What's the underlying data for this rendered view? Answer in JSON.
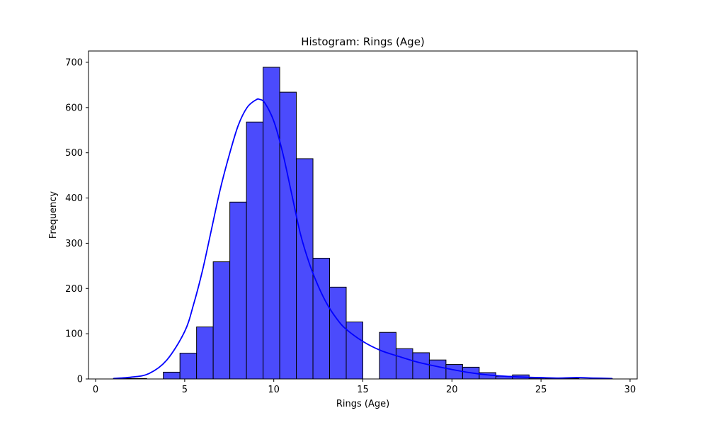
{
  "chart_data": {
    "type": "bar",
    "title": "Histogram: Rings (Age)",
    "xlabel": "Rings (Age)",
    "ylabel": "Frequency",
    "xlim": [
      -0.4,
      30.4
    ],
    "ylim": [
      0,
      725
    ],
    "xticks": [
      0,
      5,
      10,
      15,
      20,
      25,
      30
    ],
    "yticks": [
      0,
      100,
      200,
      300,
      400,
      500,
      600,
      700
    ],
    "grid": false,
    "bar_color": "#4B4BFC",
    "bar_edge_color": "#000000",
    "kde_color": "#0000FF",
    "bins": {
      "start": 1.0,
      "width": 0.9333,
      "counts": [
        1,
        1,
        0,
        15,
        57,
        115,
        259,
        391,
        568,
        689,
        634,
        487,
        267,
        203,
        126,
        0,
        103,
        67,
        58,
        42,
        32,
        26,
        14,
        6,
        9,
        2,
        1,
        1,
        0,
        1
      ]
    },
    "kde": {
      "x": [
        1,
        2,
        3,
        4,
        5,
        5.5,
        6,
        6.5,
        7,
        7.5,
        8,
        8.5,
        9,
        9.2,
        9.5,
        10,
        10.5,
        11,
        11.5,
        12,
        12.5,
        13,
        13.5,
        14,
        15,
        16,
        17,
        18,
        19,
        20,
        21,
        22,
        23,
        24,
        25,
        26,
        27,
        28,
        29
      ],
      "y": [
        1,
        4,
        12,
        42,
        105,
        165,
        240,
        330,
        420,
        495,
        560,
        600,
        617,
        618,
        610,
        570,
        500,
        410,
        320,
        255,
        205,
        165,
        135,
        112,
        83,
        63,
        50,
        38,
        29,
        21,
        14,
        9,
        6,
        4,
        3,
        2,
        3,
        2,
        1
      ]
    }
  }
}
